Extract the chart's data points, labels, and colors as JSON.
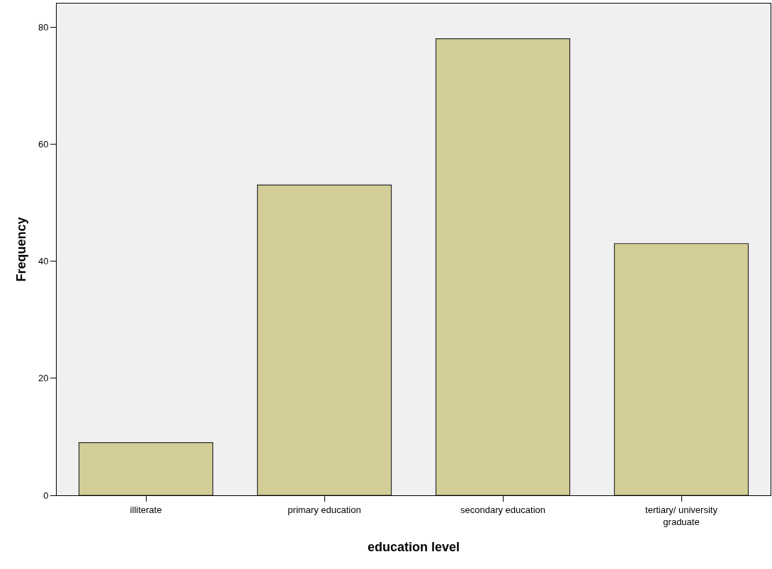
{
  "chart_data": {
    "type": "bar",
    "xlabel": "education level",
    "ylabel": "Frequency",
    "categories": [
      "illiterate",
      "primary education",
      "secondary education",
      "tertiary/ university graduate"
    ],
    "values": [
      9,
      53,
      78,
      43
    ],
    "color": "#d3ce97",
    "ylim": [
      0,
      84
    ],
    "yticks": [
      0,
      20,
      40,
      60,
      80
    ]
  }
}
